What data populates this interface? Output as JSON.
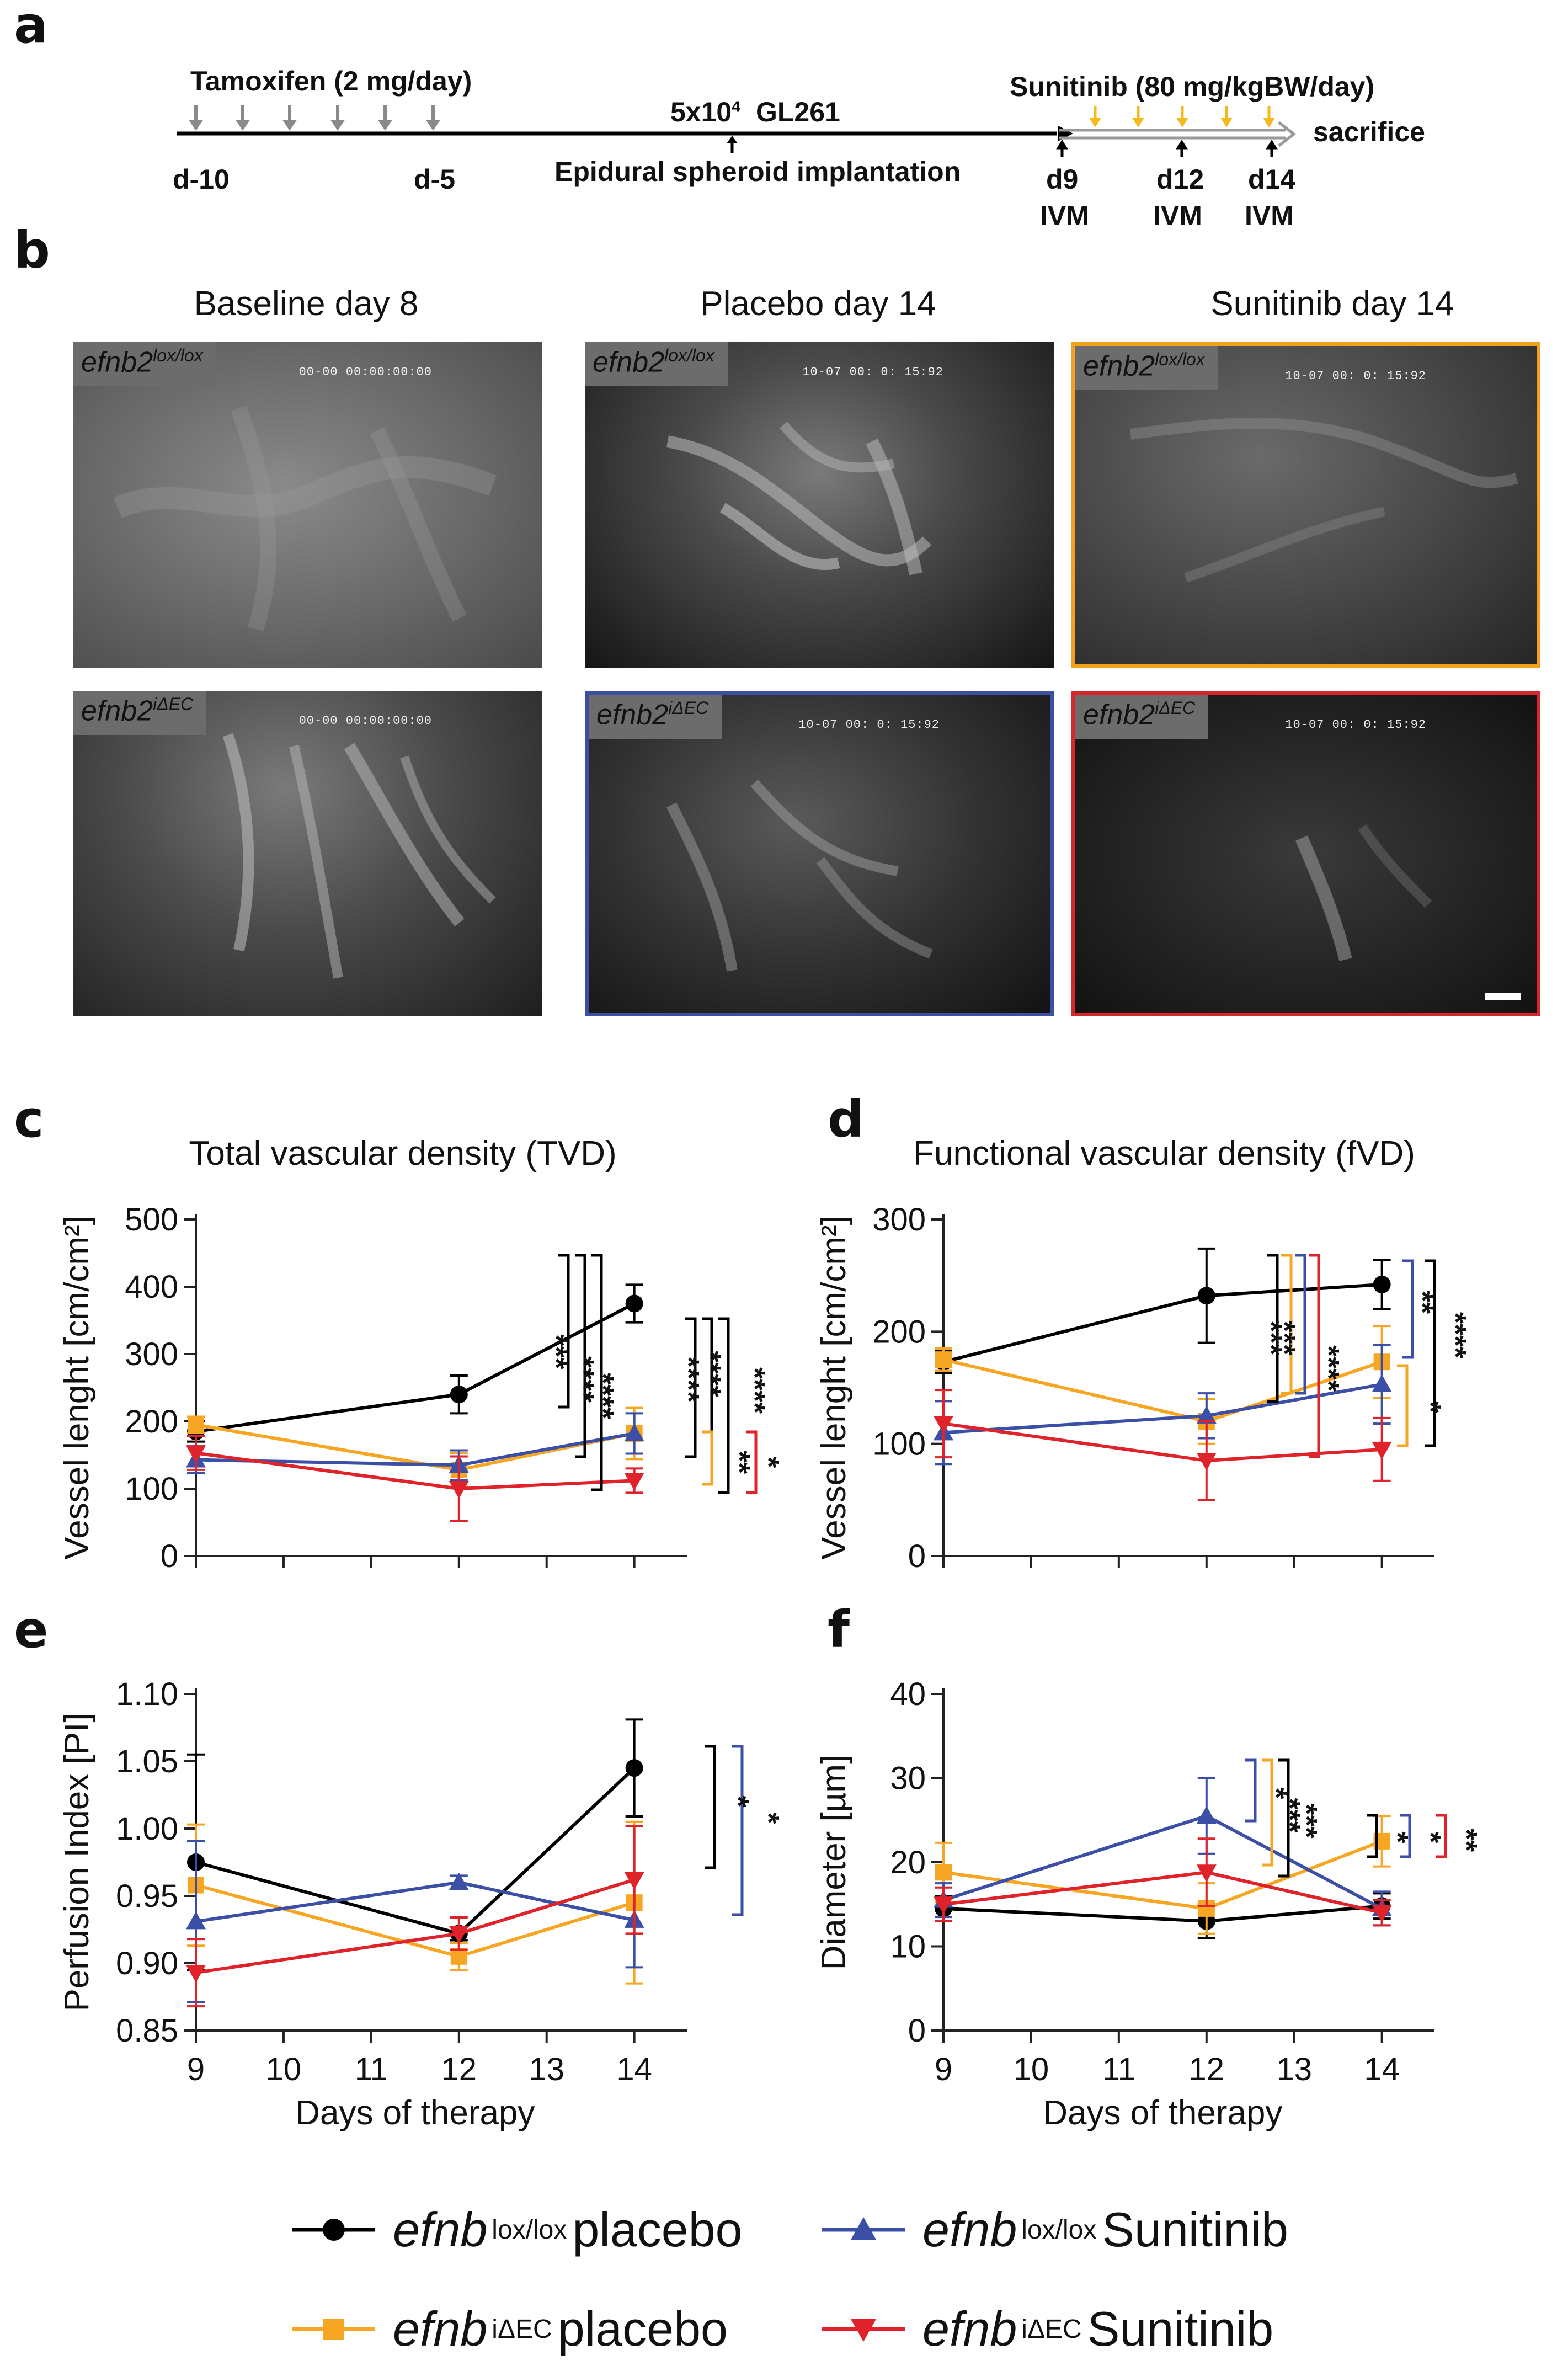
{
  "panel_labels": {
    "a": "a",
    "b": "b",
    "c": "c",
    "d": "d",
    "e": "e",
    "f": "f"
  },
  "timeline": {
    "tamoxifen": "Tamoxifen (2 mg/day)",
    "d_minus10": "d-10",
    "d_minus5": "d-5",
    "cells_prefix": "5x10",
    "cells_exp": "4",
    "cells_line": "GL261",
    "implantation": "Epidural spheroid implantation",
    "sunitinib": "Sunitinib (80 mg/kgBW/day)",
    "sacrifice": "sacrifice",
    "d9": "d9",
    "d12": "d12",
    "d14": "d14",
    "ivm": "IVM",
    "colors": {
      "tamoxifen_arrow": "#8a8a8a",
      "sunitinib_arrow": "#f5b91c"
    }
  },
  "micrographs": {
    "columns": [
      "Baseline day 8",
      "Placebo day 14",
      "Sunitinib day 14"
    ],
    "rows": [
      {
        "gene": "efnb2",
        "sup": "lox/lox"
      },
      {
        "gene": "efnb2",
        "sup": "iΔEC"
      }
    ],
    "timestamps": [
      "00-00 00:00:00:00",
      "10-07 00: 0: 15:92",
      "10-07 00: 0: 15:92",
      "00-00 00:00:00:00",
      "10-07 00: 0: 15:92",
      "10-07 00: 0: 15:92"
    ],
    "frame_colors": {
      "placebo_iDEC": "#3c4fa0",
      "sunitinib_lox": "#f2a020",
      "sunitinib_iDEC": "#d8262c"
    }
  },
  "series_colors": {
    "lox_placebo": "#000000",
    "idec_placebo": "#f6a623",
    "lox_sunitinib": "#3b4fa6",
    "idec_sunitinib": "#e0222a"
  },
  "chart_data": [
    {
      "id": "c",
      "type": "line",
      "title": "Total vascular density (TVD)",
      "xlabel": "",
      "ylabel": "Vessel lenght [cm/cm²]",
      "x": [
        9,
        12,
        14
      ],
      "xlim": [
        9,
        14.6
      ],
      "ylim": [
        0,
        500
      ],
      "yticks": [
        "0",
        "100",
        "200",
        "300",
        "400",
        "500"
      ],
      "xticks": [],
      "series": [
        {
          "name": "efnb lox/lox placebo",
          "values": [
            185,
            240,
            375
          ],
          "errors": [
            15,
            28,
            28
          ]
        },
        {
          "name": "efnb iΔEC placebo",
          "values": [
            195,
            128,
            182
          ],
          "errors": [
            12,
            25,
            38
          ]
        },
        {
          "name": "efnb lox/lox Sunitinib",
          "values": [
            143,
            135,
            182
          ],
          "errors": [
            20,
            22,
            30
          ]
        },
        {
          "name": "efnb iΔEC Sunitinib",
          "values": [
            153,
            100,
            112
          ],
          "errors": [
            25,
            48,
            18
          ]
        }
      ],
      "significance": [
        "***",
        "****",
        "****",
        "****",
        "****",
        "****",
        "**",
        "*"
      ]
    },
    {
      "id": "d",
      "type": "line",
      "title": "Functional vascular density (fVD)",
      "xlabel": "",
      "ylabel": "Vessel lenght [cm/cm²]",
      "x": [
        9,
        12,
        14
      ],
      "xlim": [
        9,
        14.6
      ],
      "ylim": [
        0,
        300
      ],
      "yticks": [
        "0",
        "100",
        "200",
        "300"
      ],
      "xticks": [],
      "series": [
        {
          "name": "efnb lox/lox placebo",
          "values": [
            173,
            232,
            242
          ],
          "errors": [
            10,
            42,
            22
          ]
        },
        {
          "name": "efnb iΔEC placebo",
          "values": [
            175,
            120,
            173
          ],
          "errors": [
            10,
            20,
            32
          ]
        },
        {
          "name": "efnb lox/lox Sunitinib",
          "values": [
            110,
            125,
            153
          ],
          "errors": [
            28,
            20,
            35
          ]
        },
        {
          "name": "efnb iΔEC Sunitinib",
          "values": [
            118,
            85,
            95
          ],
          "errors": [
            30,
            35,
            28
          ]
        }
      ],
      "significance": [
        "***",
        "***",
        "****",
        "**",
        "****",
        "*"
      ]
    },
    {
      "id": "e",
      "type": "line",
      "title": "",
      "xlabel": "Days of therapy",
      "ylabel": "Perfusion Index [PI]",
      "x": [
        9,
        12,
        14
      ],
      "xlim": [
        9,
        14.6
      ],
      "ylim": [
        0.85,
        1.1
      ],
      "yticks": [
        "0.85",
        "0.90",
        "0.95",
        "1.00",
        "1.05",
        "1.10"
      ],
      "xticks": [
        "9",
        "10",
        "11",
        "12",
        "13",
        "14"
      ],
      "series": [
        {
          "name": "efnb lox/lox placebo",
          "values": [
            0.975,
            0.922,
            1.045
          ],
          "errors": [
            0.08,
            0.005,
            0.036
          ]
        },
        {
          "name": "efnb iΔEC placebo",
          "values": [
            0.958,
            0.905,
            0.945
          ],
          "errors": [
            0.045,
            0.01,
            0.06
          ]
        },
        {
          "name": "efnb lox/lox Sunitinib",
          "values": [
            0.931,
            0.96,
            0.932
          ],
          "errors": [
            0.06,
            0.005,
            0.035
          ]
        },
        {
          "name": "efnb iΔEC Sunitinib",
          "values": [
            0.893,
            0.922,
            0.962
          ],
          "errors": [
            0.025,
            0.012,
            0.04
          ]
        }
      ],
      "significance": [
        "*",
        "*"
      ]
    },
    {
      "id": "f",
      "type": "line",
      "title": "",
      "xlabel": "Days of therapy",
      "ylabel": "Diameter [µm]",
      "x": [
        9,
        12,
        14
      ],
      "xlim": [
        9,
        14.6
      ],
      "ylim": [
        0,
        40
      ],
      "yticks": [
        "0",
        "10",
        "20",
        "30",
        "40"
      ],
      "xticks": [
        "9",
        "10",
        "11",
        "12",
        "13",
        "14"
      ],
      "series": [
        {
          "name": "efnb lox/lox placebo",
          "values": [
            14.5,
            13.0,
            14.8
          ],
          "errors": [
            1.5,
            2.0,
            1.5
          ]
        },
        {
          "name": "efnb iΔEC placebo",
          "values": [
            18.8,
            14.5,
            22.5
          ],
          "errors": [
            3.5,
            3.0,
            3.0
          ]
        },
        {
          "name": "efnb lox/lox Sunitinib",
          "values": [
            15.5,
            25.5,
            14.5
          ],
          "errors": [
            2.0,
            4.5,
            2.0
          ]
        },
        {
          "name": "efnb iΔEC Sunitinib",
          "values": [
            15.0,
            18.8,
            14.0
          ],
          "errors": [
            2.0,
            4.0,
            1.5
          ]
        }
      ],
      "significance": [
        "*",
        "***",
        "***",
        "*",
        "*",
        "**"
      ]
    }
  ],
  "legend": [
    {
      "gene": "efnb",
      "sup": "lox/lox",
      "label": "placebo",
      "color": "#000000",
      "marker": "circle"
    },
    {
      "gene": "efnb",
      "sup": "lox/lox",
      "label": "Sunitinib",
      "color": "#3b4fa6",
      "marker": "triangle-up"
    },
    {
      "gene": "efnb",
      "sup": "iΔEC",
      "label": "placebo",
      "color": "#f6a623",
      "marker": "square"
    },
    {
      "gene": "efnb",
      "sup": "iΔEC",
      "label": "Sunitinib",
      "color": "#e0222a",
      "marker": "triangle-down"
    }
  ]
}
